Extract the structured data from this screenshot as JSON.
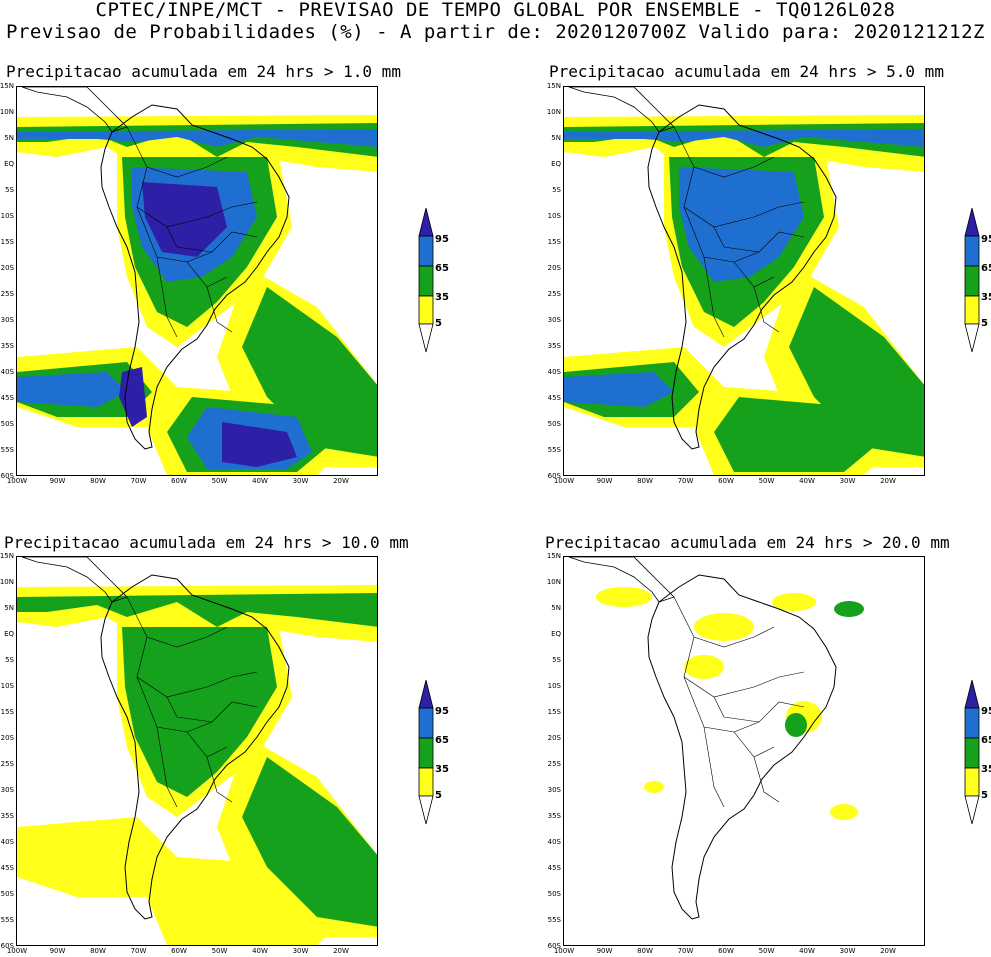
{
  "header": {
    "line1": "CPTEC/INPE/MCT - PREVISAO DE TEMPO GLOBAL POR ENSEMBLE - TQ0126L028",
    "line2": "Previsao de Probabilidades (%) -  A partir de: 2020120700Z  Valido para: 2020121212Z"
  },
  "colors": {
    "yellow": "#ffff1a",
    "green": "#16a11c",
    "blue": "#1f6fd1",
    "navy": "#2d1fa6",
    "outline": "#000000"
  },
  "lat_labels": [
    "15N",
    "10N",
    "5N",
    "EQ",
    "5S",
    "10S",
    "15S",
    "20S",
    "25S",
    "30S",
    "35S",
    "40S",
    "45S",
    "50S",
    "55S",
    "60S"
  ],
  "lon_labels": [
    "100W",
    "90W",
    "80W",
    "70W",
    "60W",
    "50W",
    "40W",
    "30W",
    "20W"
  ],
  "legend_labels": [
    "95",
    "65",
    "35",
    "5"
  ],
  "panels": [
    {
      "title": "Precipitacao acumulada em 24 hrs > 1.0 mm",
      "level": 3
    },
    {
      "title": "Precipitacao acumulada em 24 hrs > 5.0 mm",
      "level": 2
    },
    {
      "title": "Precipitacao acumulada em 24 hrs > 10.0 mm",
      "level": 1
    },
    {
      "title": "Precipitacao acumulada em 24 hrs > 20.0 mm",
      "level": 0
    }
  ]
}
